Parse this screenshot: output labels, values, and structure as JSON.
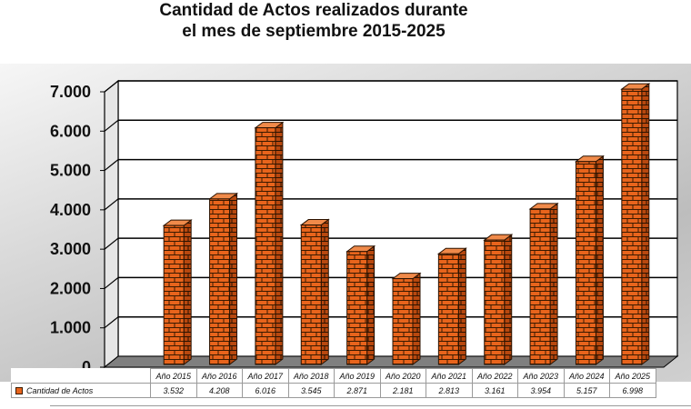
{
  "chart_data": {
    "type": "bar",
    "title": [
      "Cantidad de Actos realizados durante",
      "el mes de septiembre 2015-2025"
    ],
    "categories": [
      "Año 2015",
      "Año 2016",
      "Año 2017",
      "Año 2018",
      "Año 2019",
      "Año 2020",
      "Año 2021",
      "Año 2022",
      "Año 2023",
      "Año 2024",
      "Año 2025"
    ],
    "series": [
      {
        "name": "Cantidad de Actos",
        "values": [
          3532,
          4208,
          6016,
          3545,
          2871,
          2181,
          2813,
          3161,
          3954,
          5157,
          6998
        ],
        "value_labels": [
          "3.532",
          "4.208",
          "6.016",
          "3.545",
          "2.871",
          "2.181",
          "2.813",
          "3.161",
          "3.954",
          "5.157",
          "6.998"
        ]
      }
    ],
    "ylim": [
      0,
      7000
    ],
    "yticks": [
      0,
      1000,
      2000,
      3000,
      4000,
      5000,
      6000,
      7000
    ],
    "ytick_labels": [
      "0",
      "1.000",
      "2.000",
      "3.000",
      "4.000",
      "5.000",
      "6.000",
      "7.000"
    ],
    "grid": true,
    "bar_style": "3d-brick",
    "colors": {
      "brick": "#e8641c",
      "mortar": "#3a1a00",
      "panel": "#ffffff",
      "floor": "#7f7f7f"
    },
    "data_table": true
  }
}
